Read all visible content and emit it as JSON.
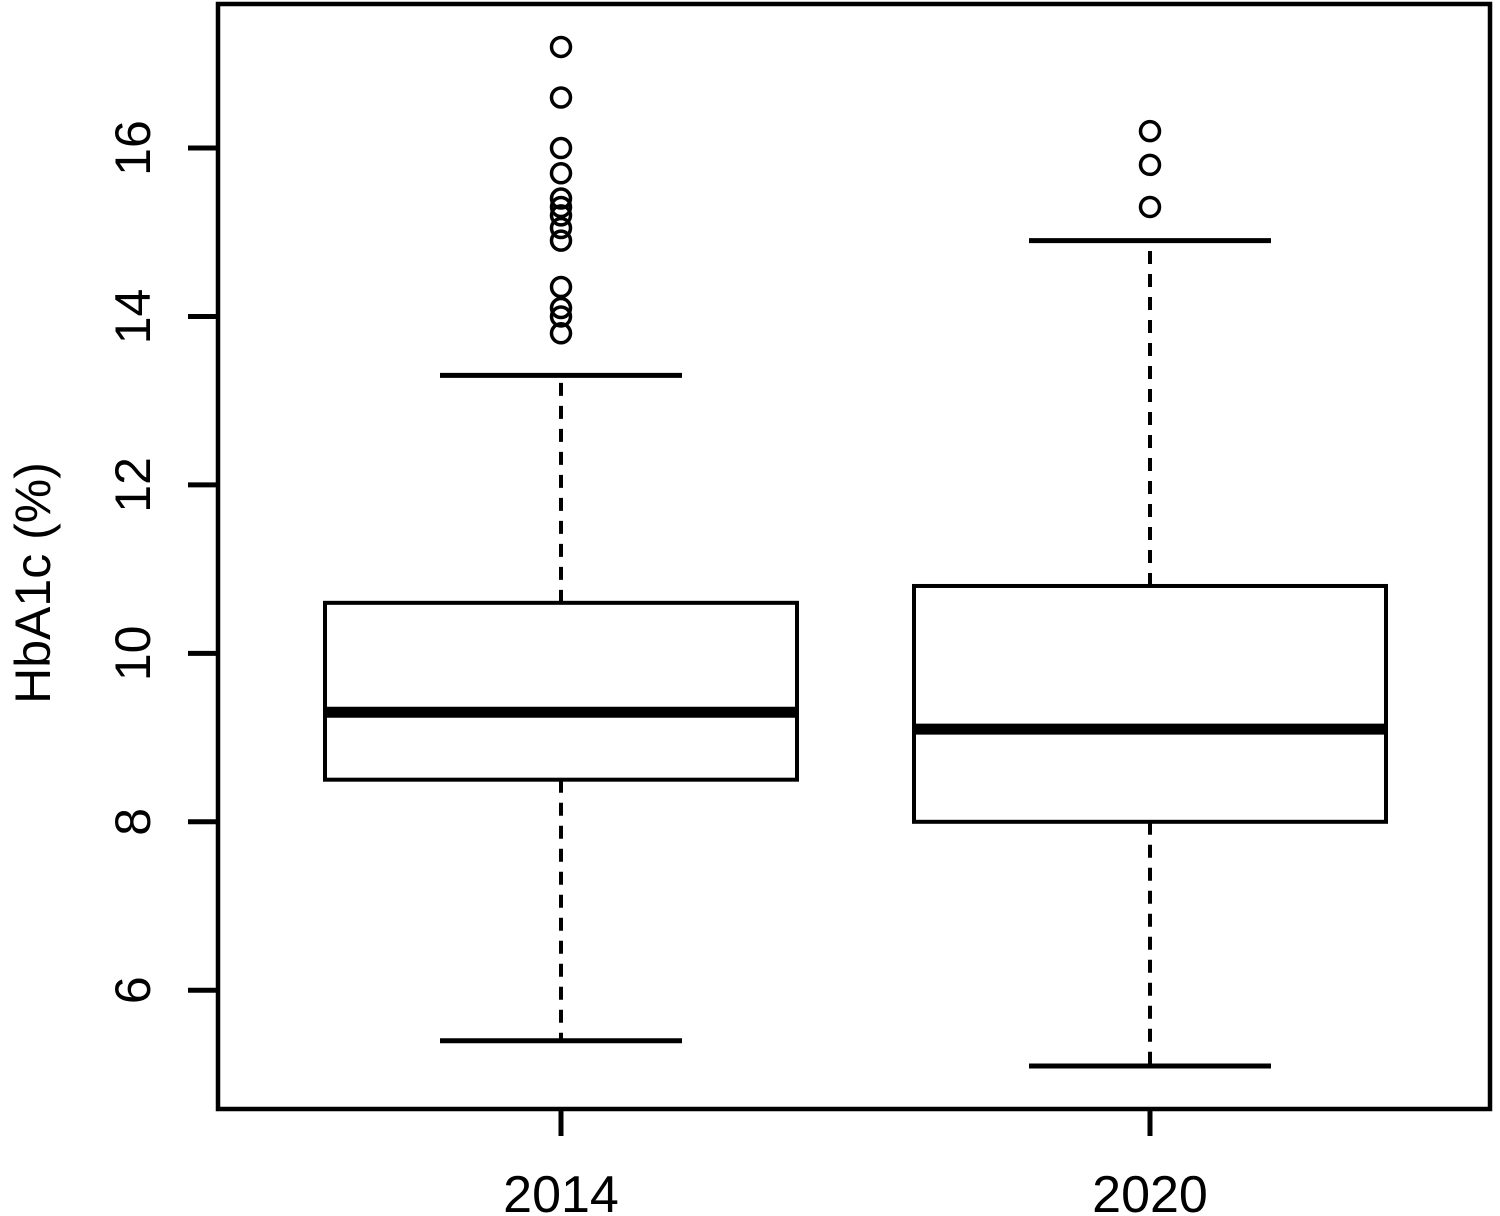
{
  "figure": {
    "background_color": "#ffffff",
    "ink_color": "#000000"
  },
  "chart_data": {
    "type": "boxplot",
    "title": "",
    "xlabel": "",
    "ylabel": "HbA1c (%)",
    "categories": [
      "2014",
      "2020"
    ],
    "yticks": [
      6,
      8,
      10,
      12,
      14,
      16
    ],
    "ytick_labels": [
      "6",
      "8",
      "10",
      "12",
      "14",
      "16"
    ],
    "ylim": [
      4.59,
      17.71
    ],
    "grid": false,
    "legend": "none",
    "tick_label_rotation_deg": 90,
    "series": [
      {
        "name": "2014",
        "whisker_low": 5.4,
        "q1": 8.5,
        "median": 9.3,
        "q3": 10.6,
        "whisker_high": 13.3,
        "outliers": [
          13.8,
          14.0,
          14.1,
          14.35,
          14.9,
          15.05,
          15.2,
          15.3,
          15.4,
          15.7,
          16.0,
          16.6,
          17.2
        ]
      },
      {
        "name": "2020",
        "whisker_low": 5.1,
        "q1": 8.0,
        "median": 9.1,
        "q3": 10.8,
        "whisker_high": 14.9,
        "outliers": [
          15.3,
          15.8,
          16.2
        ]
      }
    ]
  }
}
